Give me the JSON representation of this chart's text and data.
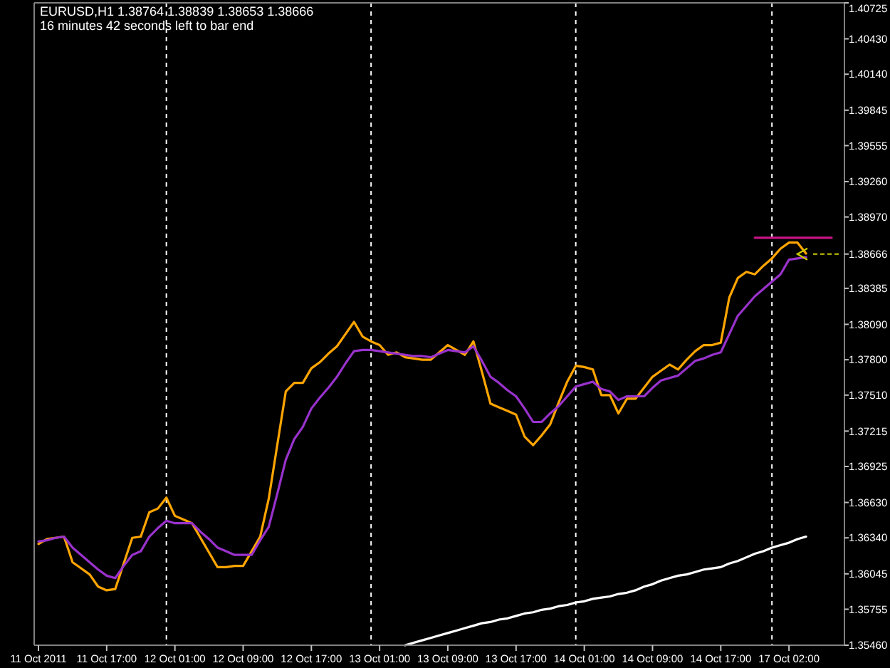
{
  "chart_data": {
    "type": "line",
    "title": "EURUSD,H1  1.38764 1.38839 1.38653 1.38666",
    "subtitle": "16 minutes 42 seconds left to bar end",
    "categories": [
      "11 Oct 2011",
      null,
      null,
      null,
      null,
      null,
      null,
      null,
      "11 Oct 17:00",
      null,
      null,
      null,
      null,
      null,
      null,
      null,
      "12 Oct 01:00",
      null,
      null,
      null,
      null,
      null,
      null,
      null,
      "12 Oct 09:00",
      null,
      null,
      null,
      null,
      null,
      null,
      null,
      "12 Oct 17:00",
      null,
      null,
      null,
      null,
      null,
      null,
      null,
      "13 Oct 01:00",
      null,
      null,
      null,
      null,
      null,
      null,
      null,
      "13 Oct 09:00",
      null,
      null,
      null,
      null,
      null,
      null,
      null,
      "13 Oct 17:00",
      null,
      null,
      null,
      null,
      null,
      null,
      null,
      "14 Oct 01:00",
      null,
      null,
      null,
      null,
      null,
      null,
      null,
      "14 Oct 09:00",
      null,
      null,
      null,
      null,
      null,
      null,
      null,
      "14 Oct 17:00",
      null,
      null,
      null,
      null,
      null,
      null,
      null,
      "17 Oct 02:00",
      null,
      null,
      null,
      null,
      null,
      null
    ],
    "ylim": [
      1.3546,
      1.40725
    ],
    "yticks": [
      {
        "value": 1.40725,
        "label": "1.40725"
      },
      {
        "value": 1.4043,
        "label": "1.40430"
      },
      {
        "value": 1.4014,
        "label": "1.40140"
      },
      {
        "value": 1.39845,
        "label": "1.39845"
      },
      {
        "value": 1.39555,
        "label": "1.39555"
      },
      {
        "value": 1.3926,
        "label": "1.39260"
      },
      {
        "value": 1.3897,
        "label": "1.38970"
      },
      {
        "value": 1.38666,
        "label": "1.38666"
      },
      {
        "value": 1.38385,
        "label": "1.38385"
      },
      {
        "value": 1.3809,
        "label": "1.38090"
      },
      {
        "value": 1.378,
        "label": "1.37800"
      },
      {
        "value": 1.3751,
        "label": "1.37510"
      },
      {
        "value": 1.37215,
        "label": "1.37215"
      },
      {
        "value": 1.36925,
        "label": "1.36925"
      },
      {
        "value": 1.3663,
        "label": "1.36630"
      },
      {
        "value": 1.3634,
        "label": "1.36340"
      },
      {
        "value": 1.36045,
        "label": "1.36045"
      },
      {
        "value": 1.35755,
        "label": "1.35755"
      },
      {
        "value": 1.3546,
        "label": "1.35460"
      }
    ],
    "marker": "none",
    "line_style": "solid",
    "series": [
      {
        "color": "#ffa500",
        "values": [
          1.3629,
          1.3633,
          1.3634,
          1.3635,
          1.3614,
          1.3609,
          1.3604,
          1.3594,
          1.3591,
          1.3592,
          1.3613,
          1.3634,
          1.3635,
          1.3655,
          1.3658,
          1.3667,
          1.3652,
          1.3649,
          1.3646,
          1.3634,
          1.3622,
          1.361,
          1.361,
          1.3611,
          1.3611,
          1.3623,
          1.3635,
          1.3666,
          1.371,
          1.3754,
          1.3761,
          1.3761,
          1.3773,
          1.3778,
          1.3785,
          1.3791,
          1.3801,
          1.3811,
          1.3799,
          1.3795,
          1.3792,
          1.3784,
          1.3786,
          1.3782,
          1.3781,
          1.378,
          1.378,
          1.3786,
          1.3792,
          1.3788,
          1.3784,
          1.3795,
          1.377,
          1.3744,
          1.3741,
          1.3738,
          1.3735,
          1.3717,
          1.371,
          1.3718,
          1.3727,
          1.3745,
          1.3762,
          1.3775,
          1.3774,
          1.3772,
          1.3751,
          1.3751,
          1.3736,
          1.3748,
          1.3748,
          1.3757,
          1.3766,
          1.3771,
          1.3776,
          1.3772,
          1.378,
          1.3787,
          1.3792,
          1.3792,
          1.3794,
          1.3831,
          1.3847,
          1.3852,
          1.385,
          1.3857,
          1.3863,
          1.3871,
          1.3876,
          1.3876,
          1.3867,
          null,
          null,
          null,
          null
        ]
      },
      {
        "color": "#9932cc",
        "values": [
          1.3631,
          1.3632,
          1.3634,
          1.3635,
          1.3626,
          1.362,
          1.3614,
          1.3608,
          1.3603,
          1.3601,
          1.3611,
          1.362,
          1.3623,
          1.3635,
          1.3642,
          1.3648,
          1.3646,
          1.3646,
          1.3646,
          1.3639,
          1.3633,
          1.3626,
          1.3623,
          1.362,
          1.362,
          1.362,
          1.3632,
          1.3643,
          1.367,
          1.3698,
          1.3715,
          1.3725,
          1.374,
          1.3749,
          1.3757,
          1.3766,
          1.3777,
          1.3787,
          1.3788,
          1.3788,
          1.3787,
          1.3786,
          1.3785,
          1.3784,
          1.3783,
          1.3783,
          1.3782,
          1.3785,
          1.3788,
          1.3787,
          1.3786,
          1.3791,
          1.3779,
          1.3766,
          1.3761,
          1.3755,
          1.375,
          1.374,
          1.3729,
          1.3729,
          1.3736,
          1.3742,
          1.375,
          1.3758,
          1.376,
          1.3762,
          1.3756,
          1.3754,
          1.3747,
          1.375,
          1.375,
          1.375,
          1.3757,
          1.3763,
          1.3765,
          1.3767,
          1.3773,
          1.3779,
          1.3781,
          1.3784,
          1.3786,
          1.3801,
          1.3816,
          1.3824,
          1.3832,
          1.3838,
          1.3844,
          1.385,
          1.3862,
          1.3863,
          1.3864,
          null,
          null,
          null,
          null
        ]
      },
      {
        "color": "#ffffff",
        "values": [
          null,
          null,
          null,
          null,
          null,
          null,
          null,
          null,
          null,
          null,
          null,
          null,
          null,
          null,
          null,
          null,
          null,
          null,
          null,
          null,
          null,
          null,
          null,
          null,
          null,
          null,
          null,
          null,
          null,
          null,
          null,
          null,
          null,
          null,
          null,
          null,
          null,
          null,
          null,
          null,
          null,
          null,
          null,
          1.3546,
          1.3548,
          1.355,
          1.3552,
          1.3554,
          1.3556,
          1.3558,
          1.356,
          1.3562,
          1.3564,
          1.3565,
          1.3567,
          1.3568,
          1.357,
          1.3572,
          1.3573,
          1.3575,
          1.3576,
          1.3578,
          1.3579,
          1.3581,
          1.3582,
          1.3584,
          1.3585,
          1.3586,
          1.3588,
          1.3589,
          1.3591,
          1.3594,
          1.3596,
          1.3599,
          1.3601,
          1.3603,
          1.3604,
          1.3606,
          1.3608,
          1.3609,
          1.361,
          1.3613,
          1.3615,
          1.3618,
          1.3621,
          1.3623,
          1.3626,
          1.3628,
          1.363,
          1.3633,
          1.3635,
          null,
          null,
          null,
          null
        ]
      },
      {
        "color": "#c71585",
        "values": [
          null,
          null,
          null,
          null,
          null,
          null,
          null,
          null,
          null,
          null,
          null,
          null,
          null,
          null,
          null,
          null,
          null,
          null,
          null,
          null,
          null,
          null,
          null,
          null,
          null,
          null,
          null,
          null,
          null,
          null,
          null,
          null,
          null,
          null,
          null,
          null,
          null,
          null,
          null,
          null,
          null,
          null,
          null,
          null,
          null,
          null,
          null,
          null,
          null,
          null,
          null,
          null,
          null,
          null,
          null,
          null,
          null,
          null,
          null,
          null,
          null,
          null,
          null,
          null,
          null,
          null,
          null,
          null,
          null,
          null,
          null,
          null,
          null,
          null,
          null,
          null,
          null,
          null,
          null,
          null,
          null,
          null,
          null,
          null,
          1.388,
          1.388,
          1.388,
          1.388,
          1.388,
          1.388,
          1.388,
          1.388,
          1.388,
          1.388,
          null
        ]
      }
    ]
  }
}
